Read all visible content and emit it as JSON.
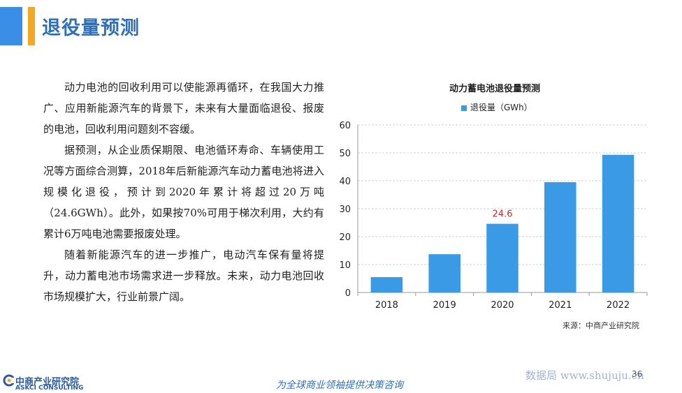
{
  "header": {
    "title": "退役量预测"
  },
  "body": {
    "paragraphs": [
      "动力电池的回收利用可以使能源再循环，在我国大力推广、应用新能源汽车的背景下，未来有大量面临退役、报废的电池，回收利用问题刻不容缓。",
      "据预测，从企业质保期限、电池循环寿命、车辆使用工况等方面综合测算，2018年后新能源汽车动力蓄电池将进入规模化退役，预计到2020年累计将超过20万吨（24.6GWh）。此外，如果按70%可用于梯次利用，大约有累计6万吨电池需要报废处理。",
      "随着新能源汽车的进一步推广，电动汽车保有量将提升，动力蓄电池市场需求进一步释放。未来，动力电池回收市场规模扩大，行业前景广阔。"
    ]
  },
  "chart_data": {
    "type": "bar",
    "title": "动力蓄电池退役量预测",
    "categories": [
      "2018",
      "2019",
      "2020",
      "2021",
      "2022"
    ],
    "series": [
      {
        "name": "退役量（GWh）",
        "values": [
          5.5,
          13.7,
          24.6,
          39.5,
          49.3
        ],
        "color": "#3a9ae6"
      }
    ],
    "data_labels": [
      {
        "category": "2020",
        "text": "24.6",
        "color": "#d62728"
      }
    ],
    "ylim": [
      0,
      60
    ],
    "yticks": [
      "0",
      "10",
      "20",
      "30",
      "40",
      "50",
      "60"
    ],
    "grid": true,
    "legend": "top-center",
    "source": "来源：中商产业研究院"
  },
  "footer": {
    "logo_cn": "中商产业研究院",
    "logo_en": "ASKCI CONSULTING",
    "slogan": "为全球商业领袖提供决策咨询",
    "watermark": "数据局 www.shujuju.cn",
    "page_number": "36"
  },
  "colors": {
    "brand_blue": "#2f6fb5",
    "accent_orange": "#f5a623",
    "bar": "#3a9ae6"
  }
}
